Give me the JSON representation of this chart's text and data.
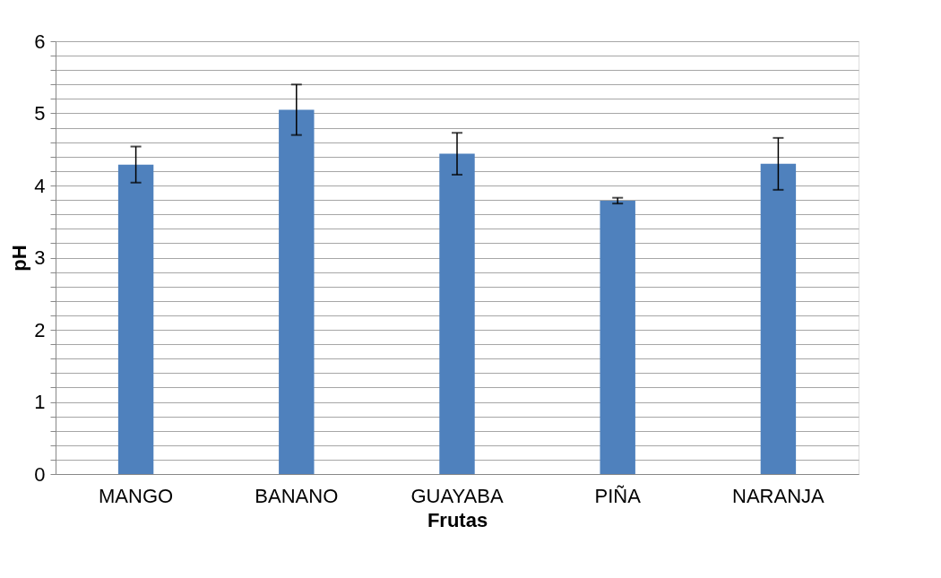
{
  "chart_data": {
    "type": "bar",
    "xlabel": "Frutas",
    "ylabel": "pH",
    "categories": [
      "MANGO",
      "BANANO",
      "GUAYABA",
      "PIÑA",
      "NARANJA"
    ],
    "values": [
      4.29,
      5.05,
      4.44,
      3.79,
      4.3
    ],
    "errors": [
      0.25,
      0.35,
      0.29,
      0.04,
      0.36
    ],
    "color": "#4f81bd",
    "ylim": [
      0,
      6
    ],
    "yticks": [
      0,
      {
        "value": 0.2,
        "label": null
      },
      {
        "value": 0.4,
        "label": null
      },
      {
        "value": 0.6,
        "label": null
      },
      {
        "value": 0.8,
        "label": null
      },
      1,
      {
        "value": 1.2,
        "label": null
      },
      {
        "value": 1.4,
        "label": null
      },
      {
        "value": 1.6,
        "label": null
      },
      {
        "value": 1.8,
        "label": null
      },
      2,
      {
        "value": 2.2,
        "label": null
      },
      {
        "value": 2.4,
        "label": null
      },
      {
        "value": 2.6,
        "label": null
      },
      {
        "value": 2.8,
        "label": null
      },
      3,
      {
        "value": 3.2,
        "label": null
      },
      {
        "value": 3.4,
        "label": null
      },
      {
        "value": 3.6,
        "label": null
      },
      {
        "value": 3.8,
        "label": null
      },
      4,
      {
        "value": 4.2,
        "label": null
      },
      {
        "value": 4.4,
        "label": null
      },
      {
        "value": 4.6,
        "label": null
      },
      {
        "value": 4.8,
        "label": null
      },
      5,
      {
        "value": 5.2,
        "label": null
      },
      {
        "value": 5.4,
        "label": null
      },
      {
        "value": 5.6,
        "label": null
      },
      {
        "value": 5.8,
        "label": null
      },
      6
    ],
    "grid": "y"
  }
}
